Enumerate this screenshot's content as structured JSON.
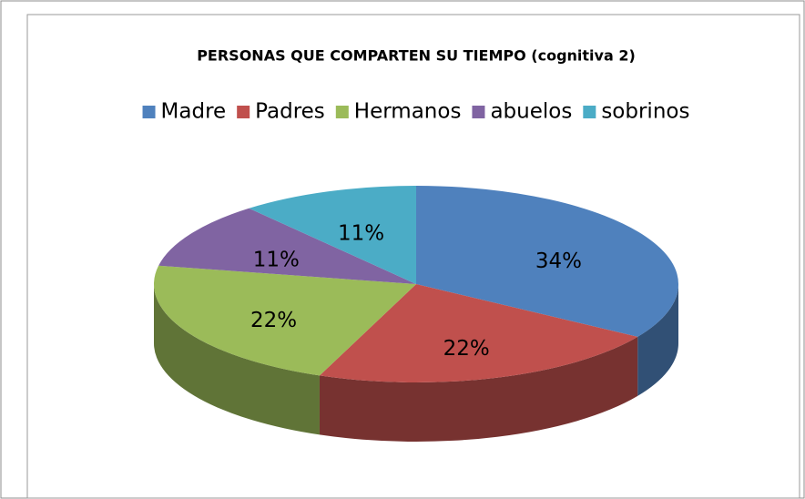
{
  "chart_data": {
    "type": "pie",
    "title": "PERSONAS QUE COMPARTEN SU TIEMPO (cognitiva 2)",
    "categories": [
      "Madre",
      "Padres",
      "Hermanos",
      "abuelos",
      "sobrinos"
    ],
    "values": [
      34,
      22,
      22,
      11,
      11
    ],
    "value_labels": [
      "34%",
      "22%",
      "22%",
      "11%",
      "11%"
    ],
    "colors": [
      "#4f81bd",
      "#c0504d",
      "#9bbb59",
      "#8064a2",
      "#4bacc6"
    ],
    "legend": "top"
  }
}
